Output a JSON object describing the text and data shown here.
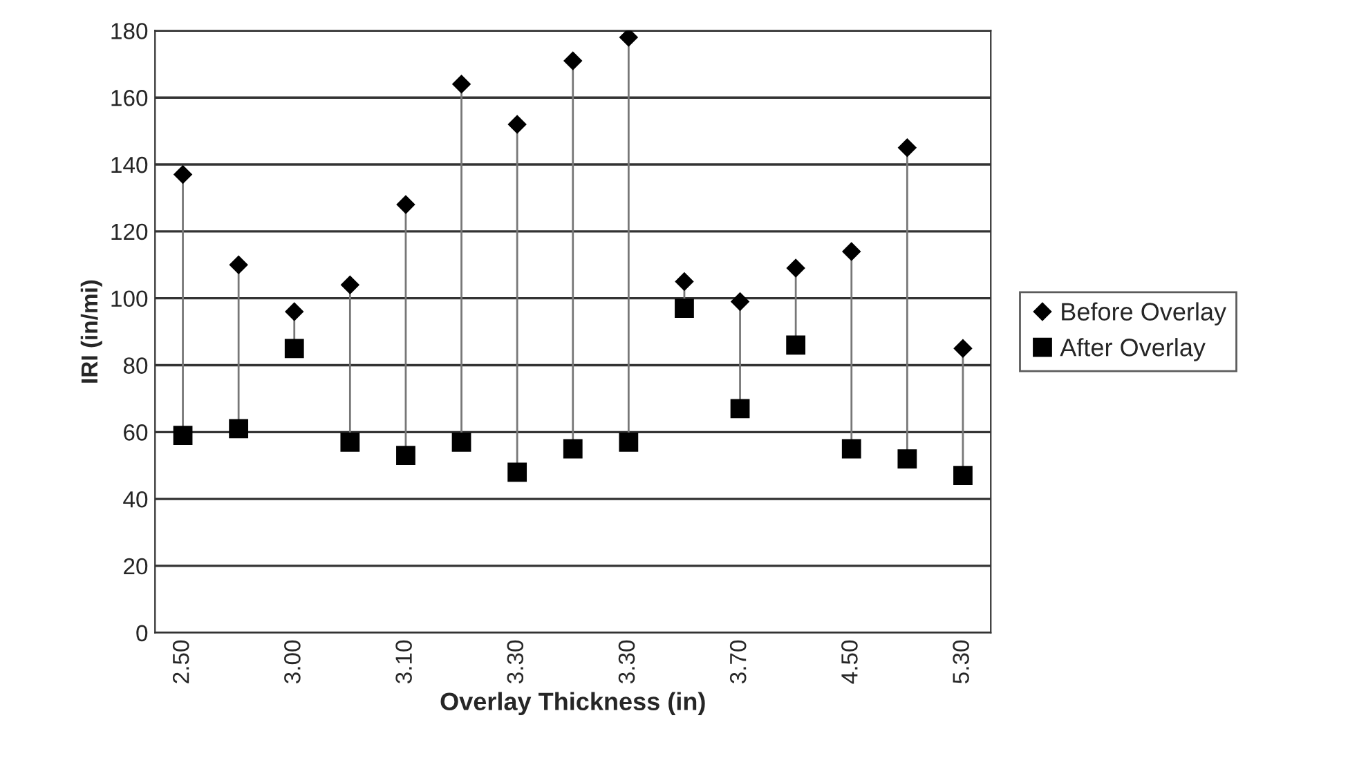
{
  "chart_data": {
    "type": "scatter",
    "xlabel": "Overlay Thickness (in)",
    "ylabel": "IRI (in/mi)",
    "categories": [
      "2.50",
      null,
      "3.00",
      null,
      "3.10",
      null,
      "3.30",
      null,
      "3.30",
      null,
      "3.70",
      null,
      "4.50",
      null,
      "5.30"
    ],
    "series": [
      {
        "name": "Before Overlay",
        "color": "#000000",
        "marker": "diamond",
        "values": [
          137,
          110,
          96,
          104,
          128,
          164,
          152,
          171,
          178,
          105,
          99,
          109,
          114,
          145,
          85
        ]
      },
      {
        "name": "After Overlay",
        "color": "#000000",
        "marker": "square",
        "values": [
          59,
          61,
          85,
          57,
          53,
          57,
          48,
          55,
          57,
          97,
          67,
          86,
          55,
          52,
          47
        ]
      }
    ],
    "ylim": [
      0,
      180
    ],
    "yticks": [
      0,
      20,
      40,
      60,
      80,
      100,
      120,
      140,
      160,
      180
    ],
    "grid": "y",
    "legend": "right"
  }
}
